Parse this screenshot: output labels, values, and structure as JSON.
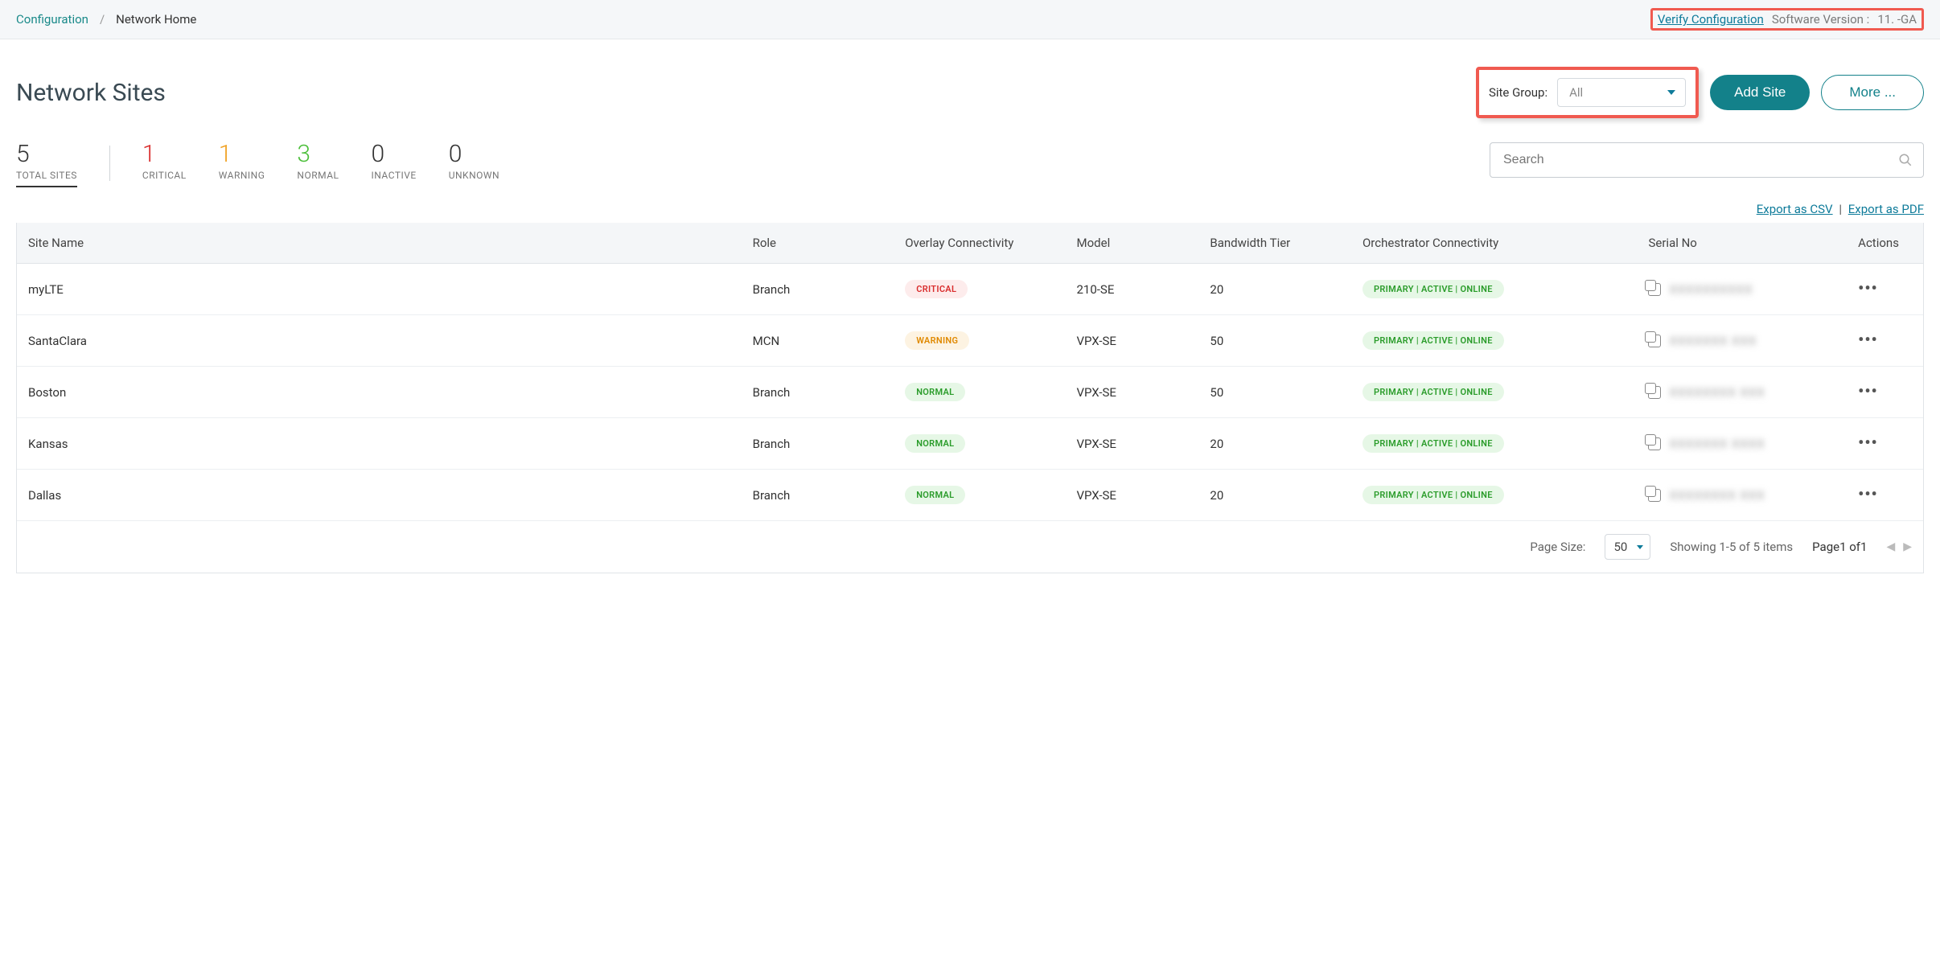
{
  "breadcrumb": {
    "config": "Configuration",
    "sep": "/",
    "home": "Network Home"
  },
  "top": {
    "verify": "Verify Configuration",
    "ver_label": "Software Version :",
    "ver_value": "11.   -GA"
  },
  "page_title": "Network Sites",
  "site_group": {
    "label": "Site Group:",
    "value": "All"
  },
  "buttons": {
    "add": "Add Site",
    "more": "More ..."
  },
  "stats": {
    "total": {
      "n": "5",
      "l": "TOTAL SITES"
    },
    "critical": {
      "n": "1",
      "l": "CRITICAL"
    },
    "warning": {
      "n": "1",
      "l": "WARNING"
    },
    "normal": {
      "n": "3",
      "l": "NORMAL"
    },
    "inactive": {
      "n": "0",
      "l": "INACTIVE"
    },
    "unknown": {
      "n": "0",
      "l": "UNKNOWN"
    }
  },
  "search_placeholder": "Search",
  "export": {
    "csv": "Export as CSV",
    "pdf": "Export as PDF",
    "sep": "|"
  },
  "cols": {
    "site": "Site Name",
    "role": "Role",
    "overlay": "Overlay Connectivity",
    "model": "Model",
    "bw": "Bandwidth Tier",
    "orch": "Orchestrator Connectivity",
    "serial": "Serial No",
    "actions": "Actions"
  },
  "badge_labels": {
    "critical": "CRITICAL",
    "warning": "WARNING",
    "normal": "NORMAL"
  },
  "orch_label": "PRIMARY | ACTIVE | ONLINE",
  "rows": [
    {
      "site": "myLTE",
      "role": "Branch",
      "overlay": "critical",
      "model": "210-SE",
      "bw": "20",
      "serial": "XXXXXXXXXX"
    },
    {
      "site": "SantaClara",
      "role": "MCN",
      "overlay": "warning",
      "model": "VPX-SE",
      "bw": "50",
      "serial": "XXXXXXX XXX"
    },
    {
      "site": "Boston",
      "role": "Branch",
      "overlay": "normal",
      "model": "VPX-SE",
      "bw": "50",
      "serial": "XXXXXXXX XXX"
    },
    {
      "site": "Kansas",
      "role": "Branch",
      "overlay": "normal",
      "model": "VPX-SE",
      "bw": "20",
      "serial": "XXXXXXX XXXX"
    },
    {
      "site": "Dallas",
      "role": "Branch",
      "overlay": "normal",
      "model": "VPX-SE",
      "bw": "20",
      "serial": "XXXXXXXX XXX"
    }
  ],
  "pager": {
    "ps_label": "Page Size:",
    "ps_value": "50",
    "showing": "Showing 1-5 of 5 items",
    "page": "Page1 of1"
  }
}
